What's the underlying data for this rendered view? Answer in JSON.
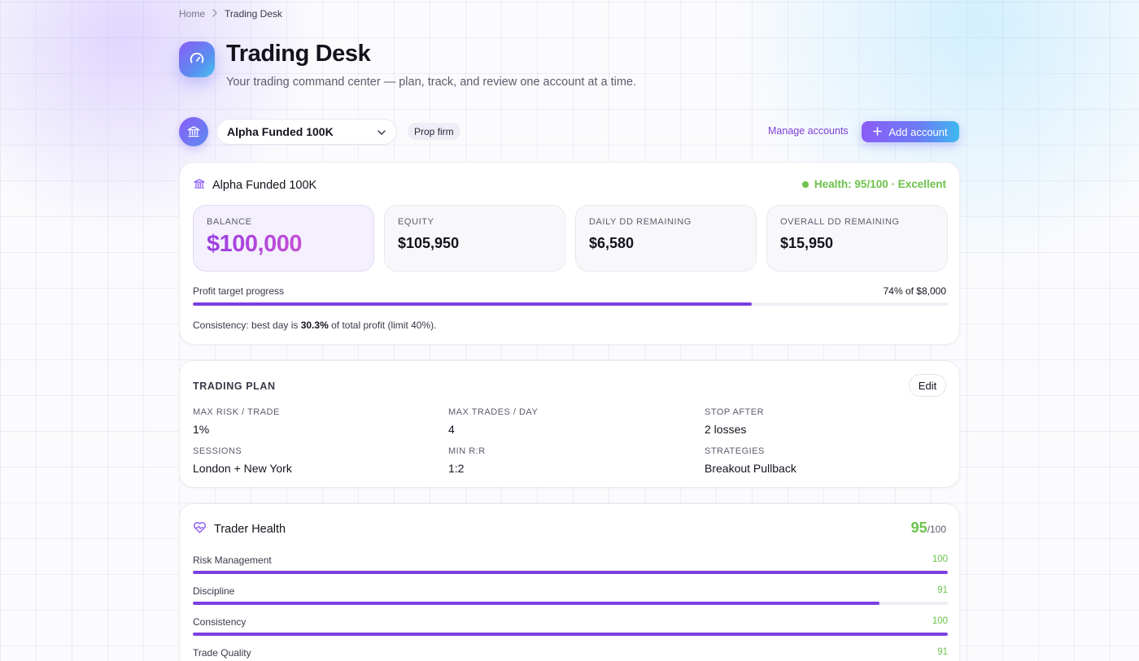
{
  "breadcrumb": {
    "home": "Home",
    "current": "Trading Desk"
  },
  "header": {
    "icon": "gauge-icon",
    "title": "Trading Desk",
    "subtitle": "Your trading command center — plan, track, and review one account at a time."
  },
  "account_bar": {
    "icon": "bank-icon",
    "selected_account": "Alpha Funded 100K",
    "badge": "Prop firm",
    "manage_label": "Manage accounts",
    "add_label": "Add account"
  },
  "account_card": {
    "name": "Alpha Funded 100K",
    "health": "Health: 95/100 · Excellent",
    "stats": [
      {
        "label": "BALANCE",
        "value": "$100,000"
      },
      {
        "label": "EQUITY",
        "value": "$105,950"
      },
      {
        "label": "DAILY DD REMAINING",
        "value": "$6,580"
      },
      {
        "label": "OVERALL DD REMAINING",
        "value": "$15,950"
      }
    ],
    "profit_target": {
      "label": "Profit target progress",
      "value_text": "74% of $8,000",
      "progress": 0.74
    },
    "consistency": {
      "prefix": "Consistency: best day is ",
      "percent": "30.3%",
      "suffix": " of total profit (limit 40%)."
    }
  },
  "trading_plan": {
    "title": "TRADING PLAN",
    "edit_label": "Edit",
    "items": [
      {
        "label": "MAX RISK / TRADE",
        "value": "1%"
      },
      {
        "label": "MAX TRADES / DAY",
        "value": "4"
      },
      {
        "label": "STOP AFTER",
        "value": "2 losses"
      },
      {
        "label": "SESSIONS",
        "value": "London + New York"
      },
      {
        "label": "MIN R:R",
        "value": "1:2"
      },
      {
        "label": "STRATEGIES",
        "value": "Breakout Pullback"
      }
    ]
  },
  "trader_health": {
    "title": "Trader Health",
    "score": "95",
    "score_max": "/100",
    "metrics": [
      {
        "label": "Risk Management",
        "value": "100",
        "progress": 1.0
      },
      {
        "label": "Discipline",
        "value": "91",
        "progress": 0.91
      },
      {
        "label": "Consistency",
        "value": "100",
        "progress": 1.0
      },
      {
        "label": "Trade Quality",
        "value": "91",
        "progress": 0.91
      }
    ]
  },
  "colors": {
    "accent": "#7c3fe0",
    "success": "#6cc24a",
    "link": "#7d3fd6"
  }
}
